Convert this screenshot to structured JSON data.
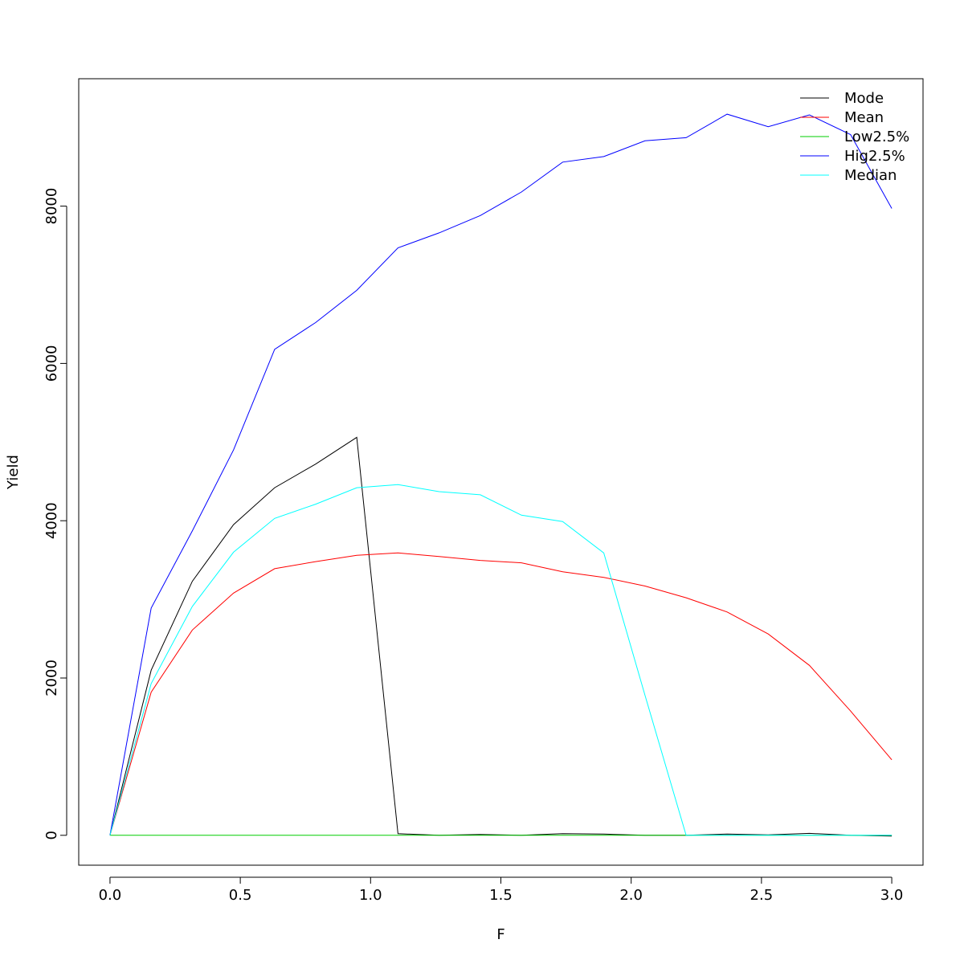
{
  "chart_data": {
    "type": "line",
    "title": "",
    "xlabel": "F",
    "ylabel": "Yield",
    "xlim": [
      -0.12,
      3.12
    ],
    "ylim": [
      -380,
      9620
    ],
    "x_ticks": [
      0.0,
      0.5,
      1.0,
      1.5,
      2.0,
      2.5,
      3.0
    ],
    "x_tick_labels": [
      "0.0",
      "0.5",
      "1.0",
      "1.5",
      "2.0",
      "2.5",
      "3.0"
    ],
    "y_ticks": [
      0,
      2000,
      4000,
      6000,
      8000
    ],
    "y_tick_labels": [
      "0",
      "2000",
      "4000",
      "6000",
      "8000"
    ],
    "grid": false,
    "legend_position": "top-right",
    "x": [
      0.0,
      0.158,
      0.316,
      0.474,
      0.632,
      0.789,
      0.947,
      1.105,
      1.263,
      1.421,
      1.579,
      1.737,
      1.895,
      2.053,
      2.211,
      2.368,
      2.526,
      2.684,
      2.842,
      3.0
    ],
    "series": [
      {
        "name": "Mode",
        "color": "#000000",
        "values": [
          0,
          2100,
          3230,
          3950,
          4420,
          4720,
          5060,
          20,
          0,
          10,
          0,
          20,
          15,
          0,
          0,
          15,
          5,
          25,
          0,
          -10
        ]
      },
      {
        "name": "Mean",
        "color": "#ff0000",
        "values": [
          0,
          1820,
          2610,
          3080,
          3390,
          3480,
          3560,
          3590,
          3545,
          3495,
          3465,
          3350,
          3280,
          3170,
          3020,
          2840,
          2560,
          2160,
          1580,
          960
        ]
      },
      {
        "name": "Low2.5%",
        "color": "#00cd00",
        "values": [
          0,
          0,
          0,
          0,
          0,
          0,
          0,
          0,
          0,
          0,
          0,
          0,
          0,
          0,
          0,
          0,
          0,
          0,
          0,
          0
        ]
      },
      {
        "name": "Hig2.5%",
        "color": "#0000ff",
        "values": [
          0,
          2890,
          3870,
          4900,
          6180,
          6520,
          6930,
          7470,
          7660,
          7880,
          8180,
          8560,
          8630,
          8830,
          8870,
          9170,
          9010,
          9160,
          8910,
          7970
        ]
      },
      {
        "name": "Median",
        "color": "#00ffff",
        "values": [
          0,
          1930,
          2910,
          3600,
          4030,
          4210,
          4420,
          4460,
          4370,
          4330,
          4070,
          3990,
          3590,
          1780,
          0,
          0,
          0,
          0,
          0,
          0
        ]
      }
    ]
  }
}
